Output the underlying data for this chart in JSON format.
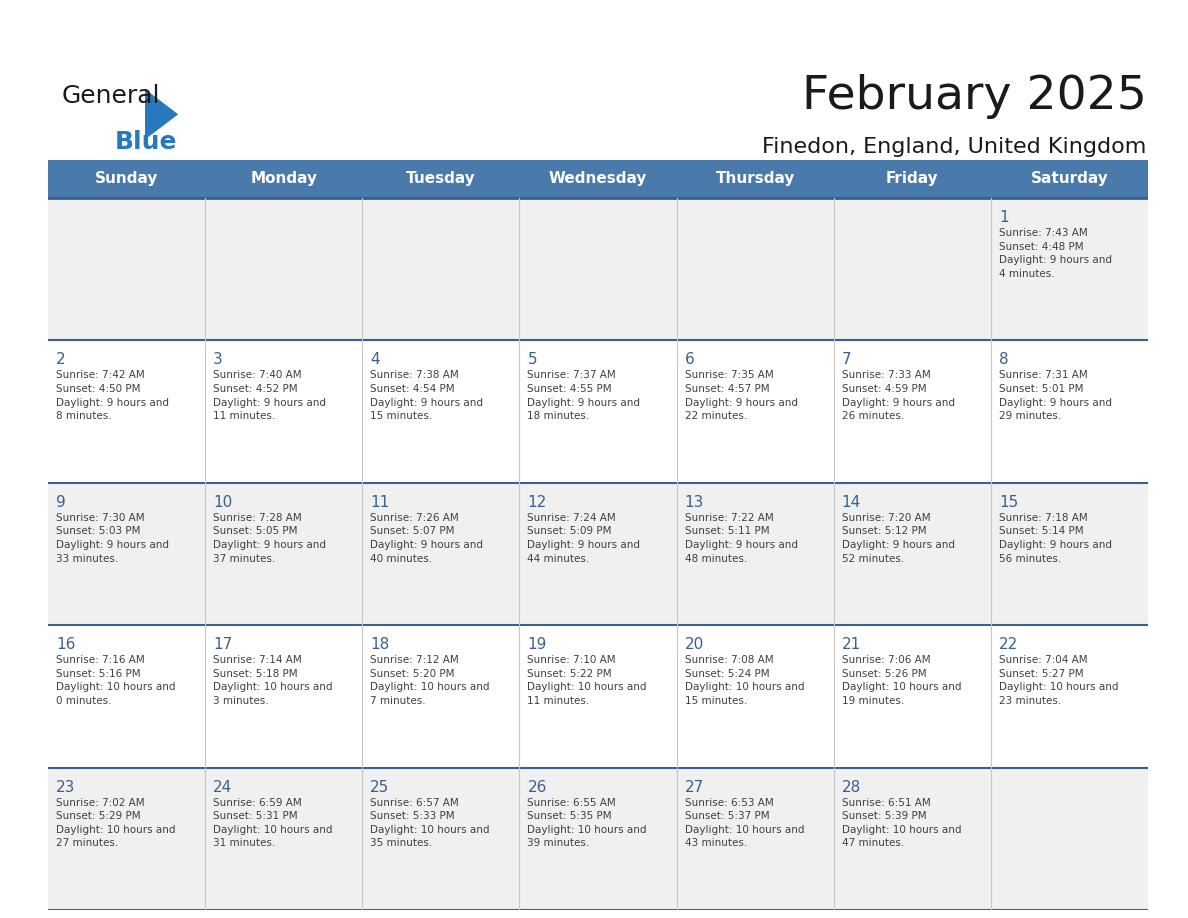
{
  "title": "February 2025",
  "subtitle": "Finedon, England, United Kingdom",
  "days_of_week": [
    "Sunday",
    "Monday",
    "Tuesday",
    "Wednesday",
    "Thursday",
    "Friday",
    "Saturday"
  ],
  "header_bg": "#4a7aab",
  "header_text": "#ffffff",
  "row_bg_odd": "#f0f0f0",
  "row_bg_even": "#ffffff",
  "separator_color": "#3a6090",
  "day_number_color": "#3a6090",
  "text_color": "#404040",
  "logo_general_color": "#1a1a1a",
  "logo_blue_color": "#2878c0",
  "calendar_data": [
    {
      "day": 1,
      "col": 6,
      "row": 0,
      "sunrise": "7:43 AM",
      "sunset": "4:48 PM",
      "daylight": "9 hours and 4 minutes"
    },
    {
      "day": 2,
      "col": 0,
      "row": 1,
      "sunrise": "7:42 AM",
      "sunset": "4:50 PM",
      "daylight": "9 hours and 8 minutes"
    },
    {
      "day": 3,
      "col": 1,
      "row": 1,
      "sunrise": "7:40 AM",
      "sunset": "4:52 PM",
      "daylight": "9 hours and 11 minutes"
    },
    {
      "day": 4,
      "col": 2,
      "row": 1,
      "sunrise": "7:38 AM",
      "sunset": "4:54 PM",
      "daylight": "9 hours and 15 minutes"
    },
    {
      "day": 5,
      "col": 3,
      "row": 1,
      "sunrise": "7:37 AM",
      "sunset": "4:55 PM",
      "daylight": "9 hours and 18 minutes"
    },
    {
      "day": 6,
      "col": 4,
      "row": 1,
      "sunrise": "7:35 AM",
      "sunset": "4:57 PM",
      "daylight": "9 hours and 22 minutes"
    },
    {
      "day": 7,
      "col": 5,
      "row": 1,
      "sunrise": "7:33 AM",
      "sunset": "4:59 PM",
      "daylight": "9 hours and 26 minutes"
    },
    {
      "day": 8,
      "col": 6,
      "row": 1,
      "sunrise": "7:31 AM",
      "sunset": "5:01 PM",
      "daylight": "9 hours and 29 minutes"
    },
    {
      "day": 9,
      "col": 0,
      "row": 2,
      "sunrise": "7:30 AM",
      "sunset": "5:03 PM",
      "daylight": "9 hours and 33 minutes"
    },
    {
      "day": 10,
      "col": 1,
      "row": 2,
      "sunrise": "7:28 AM",
      "sunset": "5:05 PM",
      "daylight": "9 hours and 37 minutes"
    },
    {
      "day": 11,
      "col": 2,
      "row": 2,
      "sunrise": "7:26 AM",
      "sunset": "5:07 PM",
      "daylight": "9 hours and 40 minutes"
    },
    {
      "day": 12,
      "col": 3,
      "row": 2,
      "sunrise": "7:24 AM",
      "sunset": "5:09 PM",
      "daylight": "9 hours and 44 minutes"
    },
    {
      "day": 13,
      "col": 4,
      "row": 2,
      "sunrise": "7:22 AM",
      "sunset": "5:11 PM",
      "daylight": "9 hours and 48 minutes"
    },
    {
      "day": 14,
      "col": 5,
      "row": 2,
      "sunrise": "7:20 AM",
      "sunset": "5:12 PM",
      "daylight": "9 hours and 52 minutes"
    },
    {
      "day": 15,
      "col": 6,
      "row": 2,
      "sunrise": "7:18 AM",
      "sunset": "5:14 PM",
      "daylight": "9 hours and 56 minutes"
    },
    {
      "day": 16,
      "col": 0,
      "row": 3,
      "sunrise": "7:16 AM",
      "sunset": "5:16 PM",
      "daylight": "10 hours and 0 minutes"
    },
    {
      "day": 17,
      "col": 1,
      "row": 3,
      "sunrise": "7:14 AM",
      "sunset": "5:18 PM",
      "daylight": "10 hours and 3 minutes"
    },
    {
      "day": 18,
      "col": 2,
      "row": 3,
      "sunrise": "7:12 AM",
      "sunset": "5:20 PM",
      "daylight": "10 hours and 7 minutes"
    },
    {
      "day": 19,
      "col": 3,
      "row": 3,
      "sunrise": "7:10 AM",
      "sunset": "5:22 PM",
      "daylight": "10 hours and 11 minutes"
    },
    {
      "day": 20,
      "col": 4,
      "row": 3,
      "sunrise": "7:08 AM",
      "sunset": "5:24 PM",
      "daylight": "10 hours and 15 minutes"
    },
    {
      "day": 21,
      "col": 5,
      "row": 3,
      "sunrise": "7:06 AM",
      "sunset": "5:26 PM",
      "daylight": "10 hours and 19 minutes"
    },
    {
      "day": 22,
      "col": 6,
      "row": 3,
      "sunrise": "7:04 AM",
      "sunset": "5:27 PM",
      "daylight": "10 hours and 23 minutes"
    },
    {
      "day": 23,
      "col": 0,
      "row": 4,
      "sunrise": "7:02 AM",
      "sunset": "5:29 PM",
      "daylight": "10 hours and 27 minutes"
    },
    {
      "day": 24,
      "col": 1,
      "row": 4,
      "sunrise": "6:59 AM",
      "sunset": "5:31 PM",
      "daylight": "10 hours and 31 minutes"
    },
    {
      "day": 25,
      "col": 2,
      "row": 4,
      "sunrise": "6:57 AM",
      "sunset": "5:33 PM",
      "daylight": "10 hours and 35 minutes"
    },
    {
      "day": 26,
      "col": 3,
      "row": 4,
      "sunrise": "6:55 AM",
      "sunset": "5:35 PM",
      "daylight": "10 hours and 39 minutes"
    },
    {
      "day": 27,
      "col": 4,
      "row": 4,
      "sunrise": "6:53 AM",
      "sunset": "5:37 PM",
      "daylight": "10 hours and 43 minutes"
    },
    {
      "day": 28,
      "col": 5,
      "row": 4,
      "sunrise": "6:51 AM",
      "sunset": "5:39 PM",
      "daylight": "10 hours and 47 minutes"
    }
  ]
}
